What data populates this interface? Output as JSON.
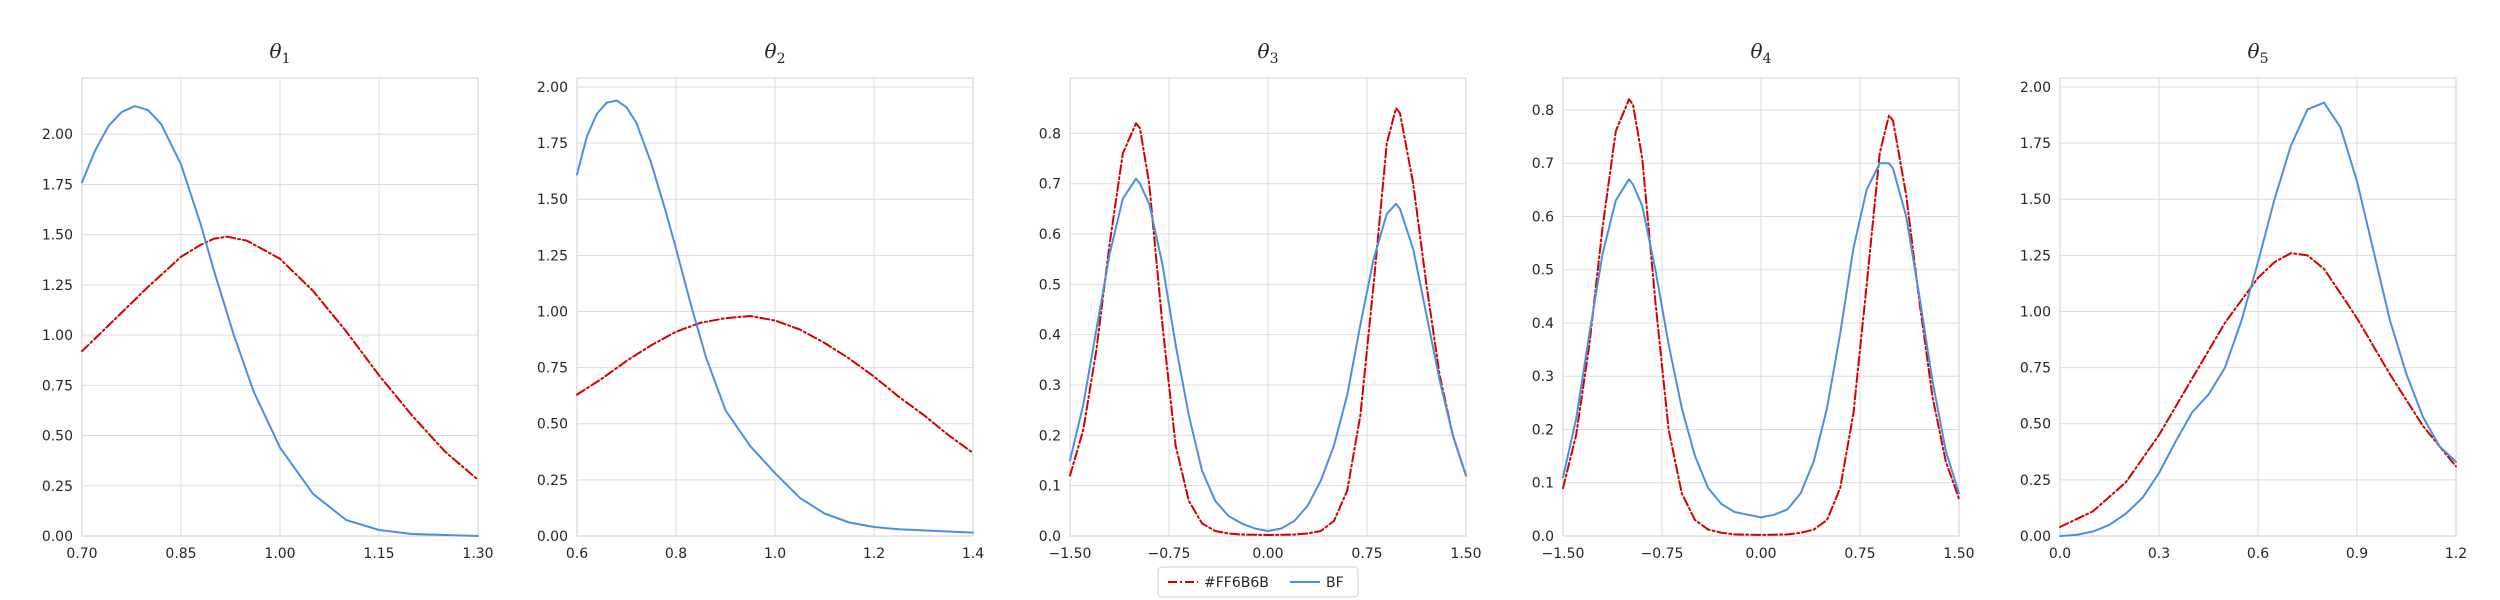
{
  "chart_data": [
    {
      "type": "line",
      "title": "θ",
      "title_sub": "1",
      "xlim": [
        0.7,
        1.3
      ],
      "ylim": [
        0.0,
        2.28
      ],
      "x_ticks": [
        0.7,
        0.85,
        1.0,
        1.15,
        1.3
      ],
      "x_tick_labels": [
        "0.70",
        "0.85",
        "1.00",
        "1.15",
        "1.30"
      ],
      "y_ticks": [
        0.0,
        0.25,
        0.5,
        0.75,
        1.0,
        1.25,
        1.5,
        1.75,
        2.0
      ],
      "y_tick_labels": [
        "0.00",
        "0.25",
        "0.50",
        "0.75",
        "1.00",
        "1.25",
        "1.50",
        "1.75",
        "2.00"
      ],
      "grid": true,
      "series": [
        {
          "name": "#FF6B6B",
          "color": "#d60000",
          "dash": "dashdot",
          "x": [
            0.7,
            0.75,
            0.8,
            0.85,
            0.88,
            0.9,
            0.92,
            0.95,
            1.0,
            1.05,
            1.1,
            1.15,
            1.2,
            1.25,
            1.3
          ],
          "y": [
            0.92,
            1.08,
            1.24,
            1.39,
            1.45,
            1.48,
            1.49,
            1.47,
            1.38,
            1.22,
            1.02,
            0.8,
            0.6,
            0.42,
            0.28
          ]
        },
        {
          "name": "BF",
          "color": "#4a90e2",
          "dash": "solid",
          "x": [
            0.7,
            0.72,
            0.74,
            0.76,
            0.78,
            0.8,
            0.82,
            0.85,
            0.88,
            0.9,
            0.93,
            0.96,
            1.0,
            1.05,
            1.1,
            1.15,
            1.2,
            1.25,
            1.3
          ],
          "y": [
            1.76,
            1.92,
            2.04,
            2.11,
            2.14,
            2.12,
            2.05,
            1.85,
            1.55,
            1.32,
            1.0,
            0.72,
            0.44,
            0.21,
            0.08,
            0.03,
            0.01,
            0.005,
            0.0
          ]
        }
      ]
    },
    {
      "type": "line",
      "title": "θ",
      "title_sub": "2",
      "xlim": [
        0.6,
        1.4
      ],
      "ylim": [
        0.0,
        2.04
      ],
      "x_ticks": [
        0.6,
        0.8,
        1.0,
        1.2,
        1.4
      ],
      "x_tick_labels": [
        "0.6",
        "0.8",
        "1.0",
        "1.2",
        "1.4"
      ],
      "y_ticks": [
        0.0,
        0.25,
        0.5,
        0.75,
        1.0,
        1.25,
        1.5,
        1.75,
        2.0
      ],
      "y_tick_labels": [
        "0.00",
        "0.25",
        "0.50",
        "0.75",
        "1.00",
        "1.25",
        "1.50",
        "1.75",
        "2.00"
      ],
      "grid": true,
      "series": [
        {
          "name": "#FF6B6B",
          "color": "#d60000",
          "dash": "dashdot",
          "x": [
            0.6,
            0.65,
            0.7,
            0.75,
            0.8,
            0.85,
            0.9,
            0.95,
            1.0,
            1.05,
            1.1,
            1.15,
            1.2,
            1.25,
            1.3,
            1.35,
            1.4
          ],
          "y": [
            0.63,
            0.7,
            0.78,
            0.85,
            0.91,
            0.95,
            0.97,
            0.98,
            0.96,
            0.92,
            0.86,
            0.79,
            0.71,
            0.62,
            0.54,
            0.45,
            0.37
          ]
        },
        {
          "name": "BF",
          "color": "#4a90e2",
          "dash": "solid",
          "x": [
            0.6,
            0.62,
            0.64,
            0.66,
            0.68,
            0.7,
            0.72,
            0.75,
            0.78,
            0.8,
            0.83,
            0.86,
            0.9,
            0.95,
            1.0,
            1.05,
            1.1,
            1.15,
            1.2,
            1.25,
            1.3,
            1.35,
            1.4
          ],
          "y": [
            1.61,
            1.78,
            1.88,
            1.93,
            1.94,
            1.91,
            1.84,
            1.66,
            1.44,
            1.28,
            1.03,
            0.8,
            0.56,
            0.4,
            0.28,
            0.17,
            0.1,
            0.06,
            0.04,
            0.03,
            0.025,
            0.02,
            0.015
          ]
        }
      ]
    },
    {
      "type": "line",
      "title": "θ",
      "title_sub": "3",
      "xlim": [
        -1.5,
        1.5
      ],
      "ylim": [
        0.0,
        0.91
      ],
      "x_ticks": [
        -1.5,
        -0.75,
        0.0,
        0.75,
        1.5
      ],
      "x_tick_labels": [
        "−1.50",
        "−0.75",
        "0.00",
        "0.75",
        "1.50"
      ],
      "y_ticks": [
        0.0,
        0.1,
        0.2,
        0.3,
        0.4,
        0.5,
        0.6,
        0.7,
        0.8
      ],
      "y_tick_labels": [
        "0.0",
        "0.1",
        "0.2",
        "0.3",
        "0.4",
        "0.5",
        "0.6",
        "0.7",
        "0.8"
      ],
      "grid": true,
      "series": [
        {
          "name": "#FF6B6B",
          "color": "#d60000",
          "dash": "dashdot",
          "x": [
            -1.5,
            -1.4,
            -1.3,
            -1.2,
            -1.1,
            -1.0,
            -0.97,
            -0.9,
            -0.8,
            -0.7,
            -0.6,
            -0.5,
            -0.4,
            -0.3,
            -0.2,
            0.0,
            0.2,
            0.3,
            0.4,
            0.5,
            0.6,
            0.7,
            0.8,
            0.9,
            0.97,
            1.0,
            1.1,
            1.2,
            1.3,
            1.4,
            1.5
          ],
          "y": [
            0.12,
            0.21,
            0.37,
            0.58,
            0.76,
            0.82,
            0.81,
            0.7,
            0.42,
            0.18,
            0.07,
            0.025,
            0.01,
            0.005,
            0.003,
            0.002,
            0.003,
            0.005,
            0.01,
            0.03,
            0.09,
            0.24,
            0.5,
            0.78,
            0.85,
            0.84,
            0.7,
            0.5,
            0.32,
            0.2,
            0.12
          ]
        },
        {
          "name": "BF",
          "color": "#4a90e2",
          "dash": "solid",
          "x": [
            -1.5,
            -1.4,
            -1.3,
            -1.2,
            -1.1,
            -1.0,
            -0.97,
            -0.9,
            -0.8,
            -0.7,
            -0.6,
            -0.5,
            -0.4,
            -0.3,
            -0.2,
            -0.1,
            0.0,
            0.1,
            0.2,
            0.3,
            0.4,
            0.5,
            0.6,
            0.7,
            0.8,
            0.9,
            0.97,
            1.0,
            1.1,
            1.2,
            1.3,
            1.4,
            1.5
          ],
          "y": [
            0.15,
            0.26,
            0.41,
            0.56,
            0.67,
            0.71,
            0.7,
            0.66,
            0.54,
            0.38,
            0.24,
            0.13,
            0.07,
            0.04,
            0.025,
            0.015,
            0.01,
            0.015,
            0.03,
            0.06,
            0.11,
            0.18,
            0.28,
            0.42,
            0.55,
            0.64,
            0.66,
            0.65,
            0.57,
            0.44,
            0.31,
            0.2,
            0.12
          ]
        }
      ]
    },
    {
      "type": "line",
      "title": "θ",
      "title_sub": "4",
      "xlim": [
        -1.5,
        1.5
      ],
      "ylim": [
        0.0,
        0.86
      ],
      "x_ticks": [
        -1.5,
        -0.75,
        0.0,
        0.75,
        1.5
      ],
      "x_tick_labels": [
        "−1.50",
        "−0.75",
        "0.00",
        "0.75",
        "1.50"
      ],
      "y_ticks": [
        0.0,
        0.1,
        0.2,
        0.3,
        0.4,
        0.5,
        0.6,
        0.7,
        0.8
      ],
      "y_tick_labels": [
        "0.0",
        "0.1",
        "0.2",
        "0.3",
        "0.4",
        "0.5",
        "0.6",
        "0.7",
        "0.8"
      ],
      "grid": true,
      "series": [
        {
          "name": "#FF6B6B",
          "color": "#d60000",
          "dash": "dashdot",
          "x": [
            -1.5,
            -1.4,
            -1.3,
            -1.2,
            -1.1,
            -1.0,
            -0.97,
            -0.9,
            -0.8,
            -0.7,
            -0.6,
            -0.5,
            -0.4,
            -0.3,
            -0.2,
            0.0,
            0.2,
            0.3,
            0.4,
            0.5,
            0.6,
            0.7,
            0.8,
            0.9,
            0.97,
            1.0,
            1.1,
            1.2,
            1.3,
            1.4,
            1.5
          ],
          "y": [
            0.09,
            0.19,
            0.36,
            0.58,
            0.76,
            0.82,
            0.81,
            0.71,
            0.44,
            0.2,
            0.08,
            0.03,
            0.012,
            0.006,
            0.003,
            0.002,
            0.003,
            0.006,
            0.012,
            0.03,
            0.09,
            0.23,
            0.47,
            0.72,
            0.79,
            0.78,
            0.64,
            0.44,
            0.26,
            0.14,
            0.07
          ]
        },
        {
          "name": "BF",
          "color": "#4a90e2",
          "dash": "solid",
          "x": [
            -1.5,
            -1.4,
            -1.3,
            -1.2,
            -1.1,
            -1.0,
            -0.97,
            -0.9,
            -0.8,
            -0.7,
            -0.6,
            -0.5,
            -0.4,
            -0.3,
            -0.2,
            -0.1,
            0.0,
            0.1,
            0.2,
            0.3,
            0.4,
            0.5,
            0.6,
            0.7,
            0.8,
            0.9,
            0.97,
            1.0,
            1.1,
            1.2,
            1.3,
            1.4,
            1.5
          ],
          "y": [
            0.11,
            0.22,
            0.38,
            0.53,
            0.63,
            0.67,
            0.66,
            0.62,
            0.5,
            0.36,
            0.24,
            0.15,
            0.09,
            0.06,
            0.045,
            0.04,
            0.035,
            0.04,
            0.05,
            0.08,
            0.14,
            0.24,
            0.38,
            0.54,
            0.65,
            0.7,
            0.7,
            0.69,
            0.6,
            0.45,
            0.29,
            0.16,
            0.08
          ]
        }
      ]
    },
    {
      "type": "line",
      "title": "θ",
      "title_sub": "5",
      "xlim": [
        0.0,
        1.2
      ],
      "ylim": [
        0.0,
        2.04
      ],
      "x_ticks": [
        0.0,
        0.3,
        0.6,
        0.9,
        1.2
      ],
      "x_tick_labels": [
        "0.0",
        "0.3",
        "0.6",
        "0.9",
        "1.2"
      ],
      "y_ticks": [
        0.0,
        0.25,
        0.5,
        0.75,
        1.0,
        1.25,
        1.5,
        1.75,
        2.0
      ],
      "y_tick_labels": [
        "0.00",
        "0.25",
        "0.50",
        "0.75",
        "1.00",
        "1.25",
        "1.50",
        "1.75",
        "2.00"
      ],
      "grid": true,
      "series": [
        {
          "name": "#FF6B6B",
          "color": "#d60000",
          "dash": "dashdot",
          "x": [
            0.0,
            0.1,
            0.2,
            0.3,
            0.4,
            0.5,
            0.6,
            0.65,
            0.7,
            0.75,
            0.8,
            0.9,
            1.0,
            1.1,
            1.2
          ],
          "y": [
            0.04,
            0.11,
            0.24,
            0.45,
            0.7,
            0.95,
            1.15,
            1.22,
            1.26,
            1.25,
            1.19,
            0.97,
            0.72,
            0.49,
            0.31
          ]
        },
        {
          "name": "BF",
          "color": "#4a90e2",
          "dash": "solid",
          "x": [
            0.0,
            0.05,
            0.1,
            0.15,
            0.2,
            0.25,
            0.3,
            0.35,
            0.4,
            0.45,
            0.5,
            0.55,
            0.6,
            0.65,
            0.7,
            0.75,
            0.8,
            0.85,
            0.9,
            0.95,
            1.0,
            1.05,
            1.1,
            1.15,
            1.2
          ],
          "y": [
            0.0,
            0.005,
            0.02,
            0.05,
            0.1,
            0.17,
            0.28,
            0.42,
            0.55,
            0.63,
            0.75,
            0.96,
            1.22,
            1.5,
            1.74,
            1.9,
            1.93,
            1.82,
            1.58,
            1.27,
            0.96,
            0.72,
            0.53,
            0.4,
            0.33
          ]
        }
      ]
    }
  ],
  "legend": {
    "items": [
      {
        "label": "#FF6B6B",
        "color": "#d60000",
        "dash": "dashdot"
      },
      {
        "label": "BF",
        "color": "#4a90e2",
        "dash": "solid"
      }
    ]
  }
}
